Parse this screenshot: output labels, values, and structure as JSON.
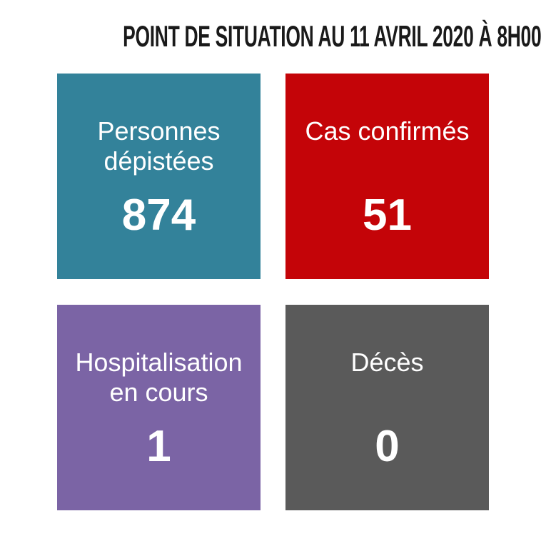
{
  "header": {
    "title": "POINT DE SITUATION AU 11 AVRIL 2020 À 8H00"
  },
  "cards": [
    {
      "name": "personnes-depistees",
      "label": "Personnes\ndépistées",
      "value": "874",
      "color": "#33829a"
    },
    {
      "name": "cas-confirmes",
      "label": "Cas confirmés",
      "value": "51",
      "color": "#c40408"
    },
    {
      "name": "hospitalisation-en-cours",
      "label": "Hospitalisation\nen cours",
      "value": "1",
      "color": "#7b64a5"
    },
    {
      "name": "deces",
      "label": "Décès",
      "value": "0",
      "color": "#5a5a5a"
    }
  ],
  "colors": {
    "background": "#ffffff",
    "title_text": "#1a1a1a",
    "card_text": "#ffffff",
    "teal": "#33829a",
    "red": "#c40408",
    "purple": "#7b64a5",
    "gray": "#5a5a5a"
  },
  "chart_data": {
    "type": "table",
    "title": "POINT DE SITUATION AU 11 AVRIL 2020 À 8H00",
    "categories": [
      "Personnes dépistées",
      "Cas confirmés",
      "Hospitalisation en cours",
      "Décès"
    ],
    "values": [
      874,
      51,
      1,
      0
    ],
    "layout_hints": {
      "grid": "2x2 stat tiles",
      "tile_colors": [
        "#33829a",
        "#c40408",
        "#7b64a5",
        "#5a5a5a"
      ],
      "background": "#ffffff"
    }
  }
}
